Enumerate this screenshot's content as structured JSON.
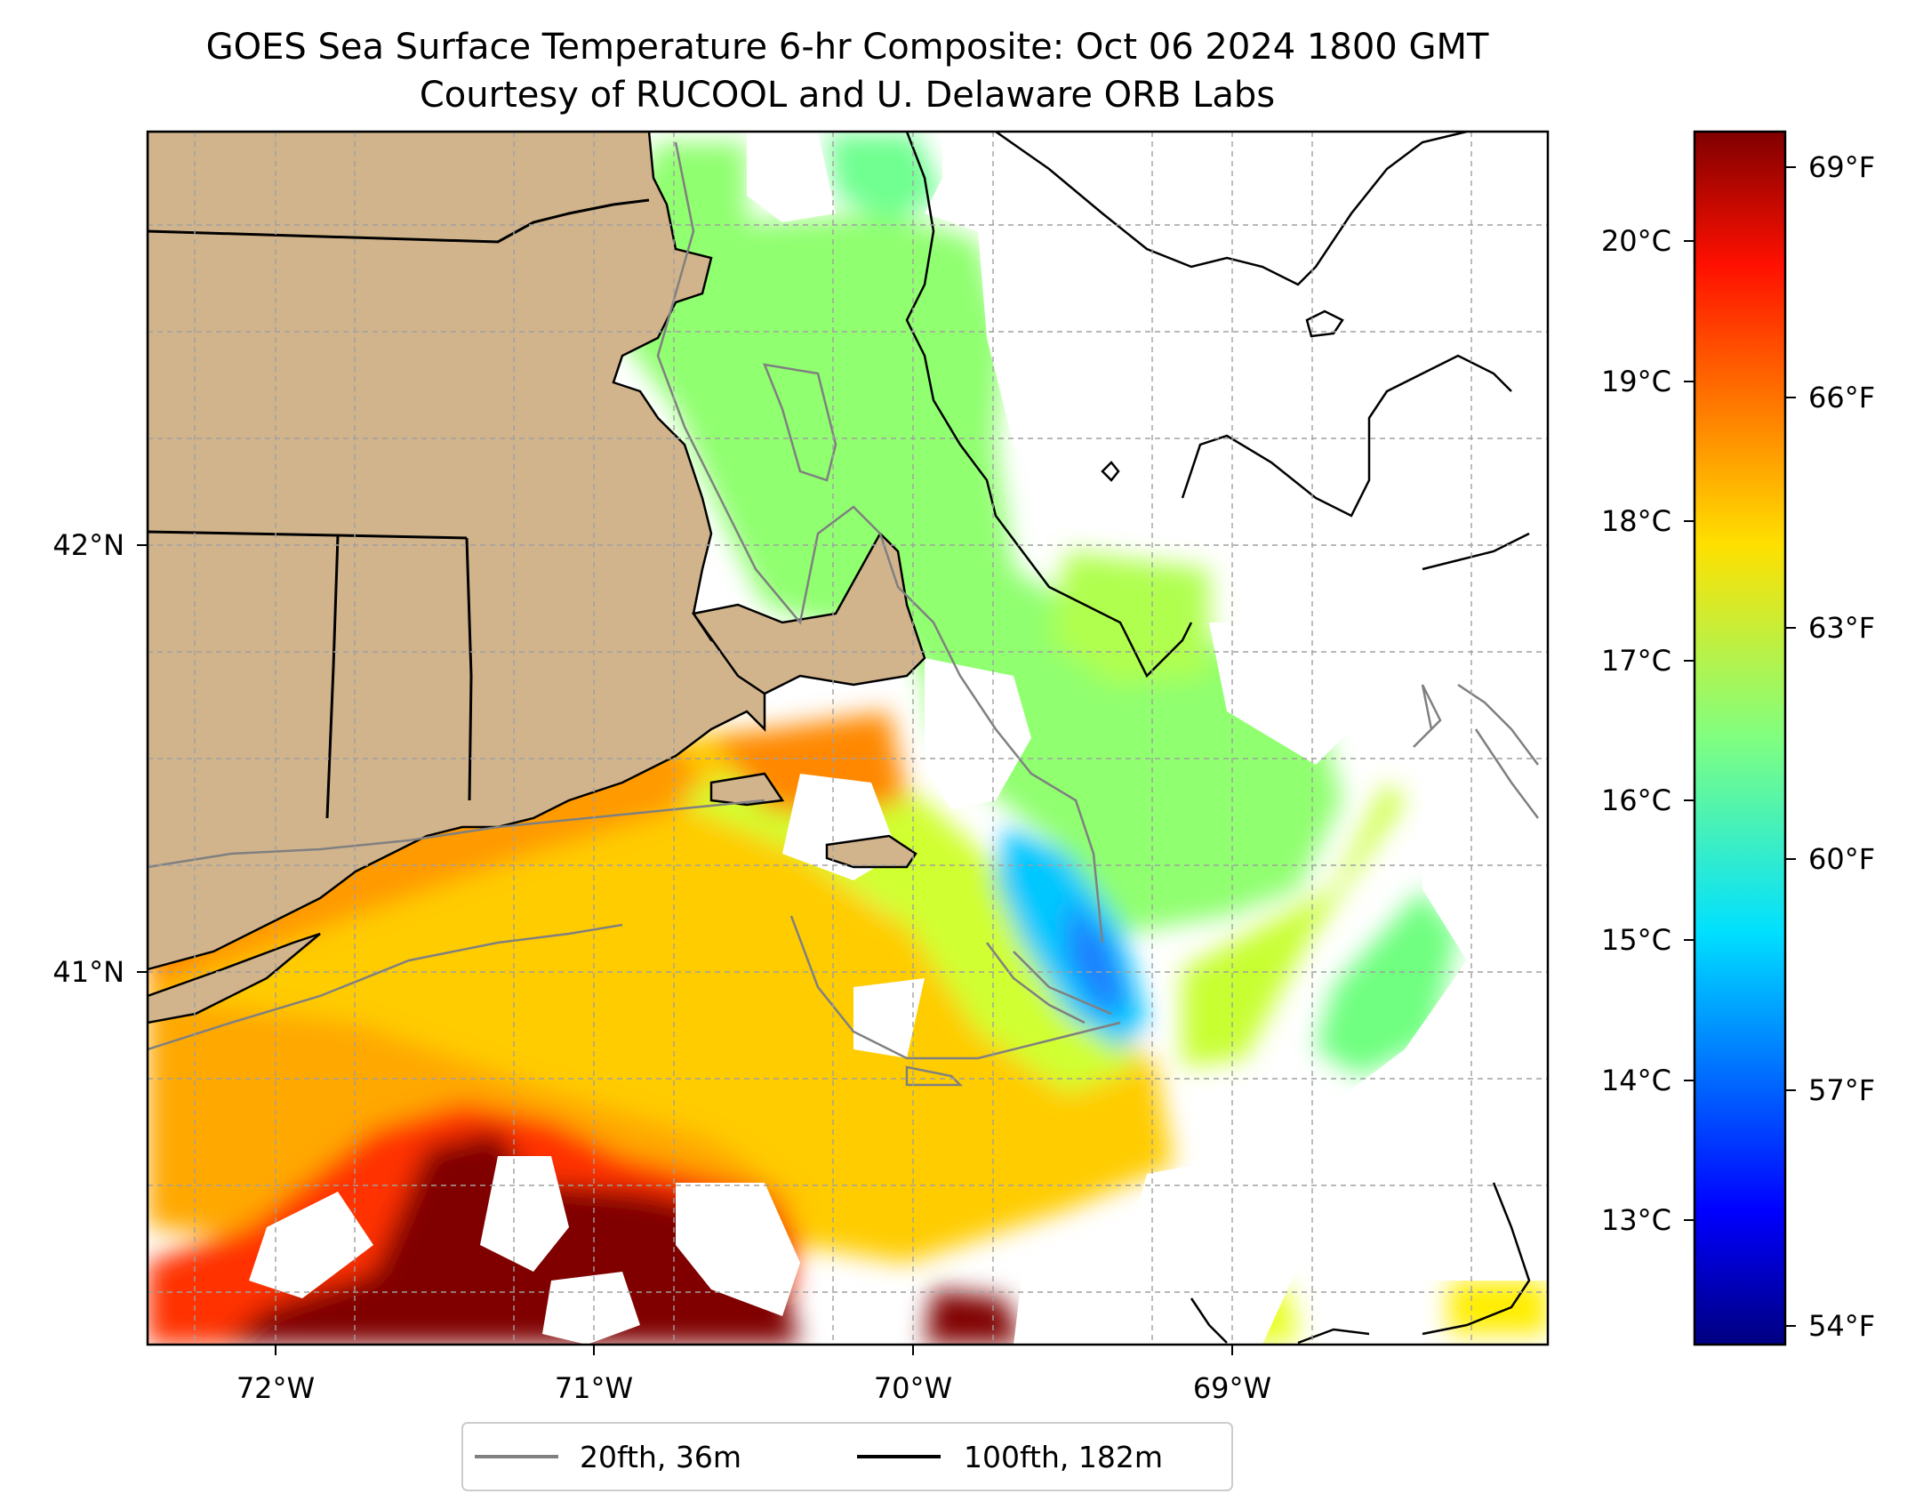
{
  "title": {
    "line1": "GOES Sea Surface Temperature 6-hr Composite: Oct 06 2024 1800 GMT",
    "line2": "Courtesy of RUCOOL and U. Delaware ORB Labs"
  },
  "map": {
    "lon_range": [
      -72.4,
      -68.05
    ],
    "lat_range": [
      40.15,
      43.0
    ],
    "lon_ticks": [
      {
        "value": -72,
        "label": "72°W"
      },
      {
        "value": -71,
        "label": "71°W"
      },
      {
        "value": -70,
        "label": "70°W"
      },
      {
        "value": -69,
        "label": "69°W"
      }
    ],
    "lat_ticks": [
      {
        "value": 42,
        "label": "42°N"
      },
      {
        "value": 41,
        "label": "41°N"
      }
    ],
    "grid": true,
    "land_color": "#d2b48c"
  },
  "colorbar": {
    "colormap": "jet",
    "range_f": [
      53.6,
      69.6
    ],
    "celsius_ticks": [
      {
        "value": 20,
        "label": "20°C"
      },
      {
        "value": 19,
        "label": "19°C"
      },
      {
        "value": 18,
        "label": "18°C"
      },
      {
        "value": 17,
        "label": "17°C"
      },
      {
        "value": 16,
        "label": "16°C"
      },
      {
        "value": 15,
        "label": "15°C"
      },
      {
        "value": 14,
        "label": "14°C"
      },
      {
        "value": 13,
        "label": "13°C"
      }
    ],
    "fahrenheit_ticks": [
      {
        "value": 69,
        "label": "69°F"
      },
      {
        "value": 66,
        "label": "66°F"
      },
      {
        "value": 63,
        "label": "63°F"
      },
      {
        "value": 60,
        "label": "60°F"
      },
      {
        "value": 57,
        "label": "57°F"
      },
      {
        "value": 54,
        "label": "54°F"
      }
    ]
  },
  "legend": {
    "position": "bottom-center",
    "items": [
      {
        "label": "20fth, 36m",
        "color": "#808080"
      },
      {
        "label": "100fth, 182m",
        "color": "#000000"
      }
    ]
  }
}
